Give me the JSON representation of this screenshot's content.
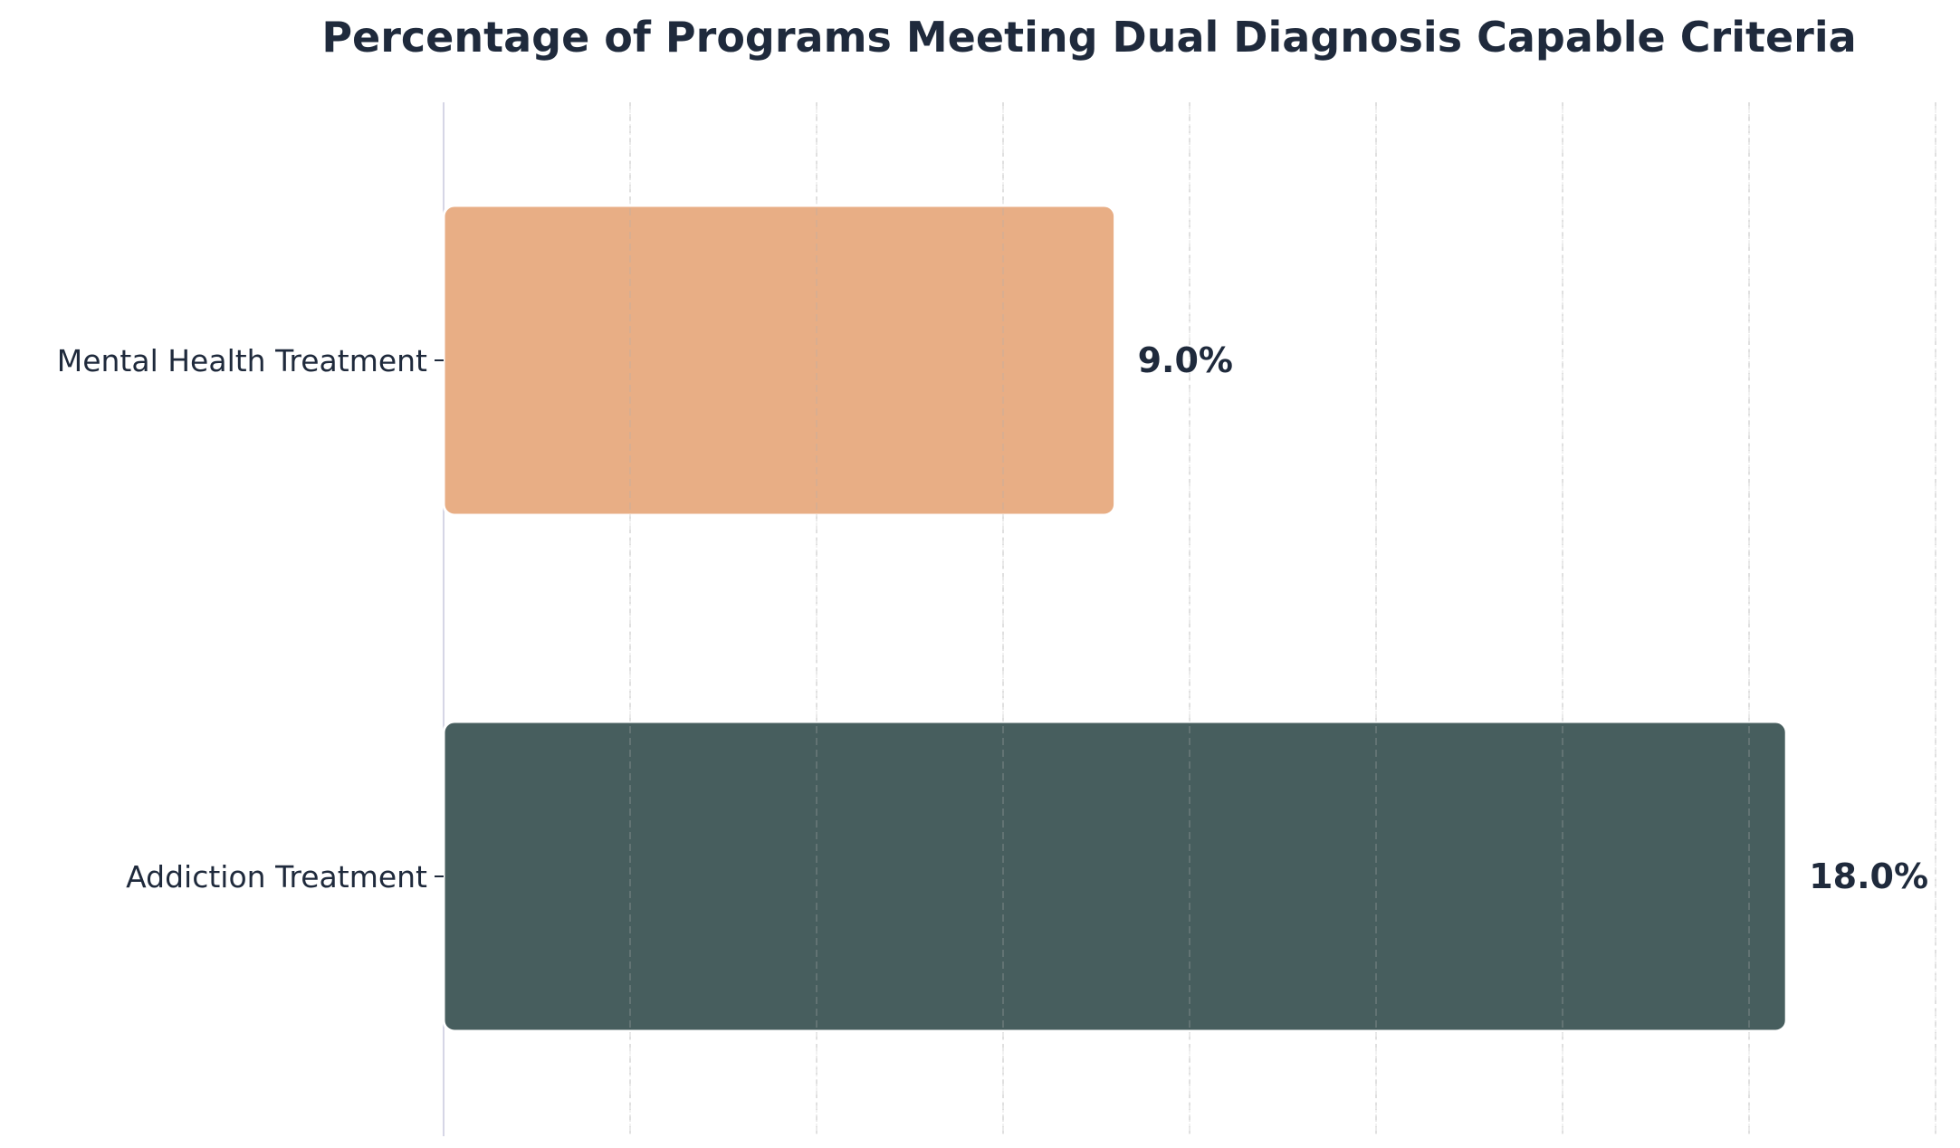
{
  "chart_data": {
    "type": "bar",
    "orientation": "horizontal",
    "title": "Percentage of Programs Meeting Dual Diagnosis Capable Criteria",
    "xlabel": "",
    "ylabel": "",
    "categories": [
      "Mental Health Treatment",
      "Addiction Treatment"
    ],
    "values": [
      9.0,
      18.0
    ],
    "value_labels": [
      "9.0%",
      "18.0%"
    ],
    "unit": "%",
    "xlim": [
      0,
      20
    ],
    "x_ticks_visible": false,
    "grid": "vertical-dashed",
    "legend": "none",
    "colors": [
      "#e8ae85",
      "#475e5e"
    ]
  },
  "colors": {
    "title": "#1f2a3c",
    "axis_spine": "#d6d6e6",
    "grid": "#b0b0b0"
  }
}
